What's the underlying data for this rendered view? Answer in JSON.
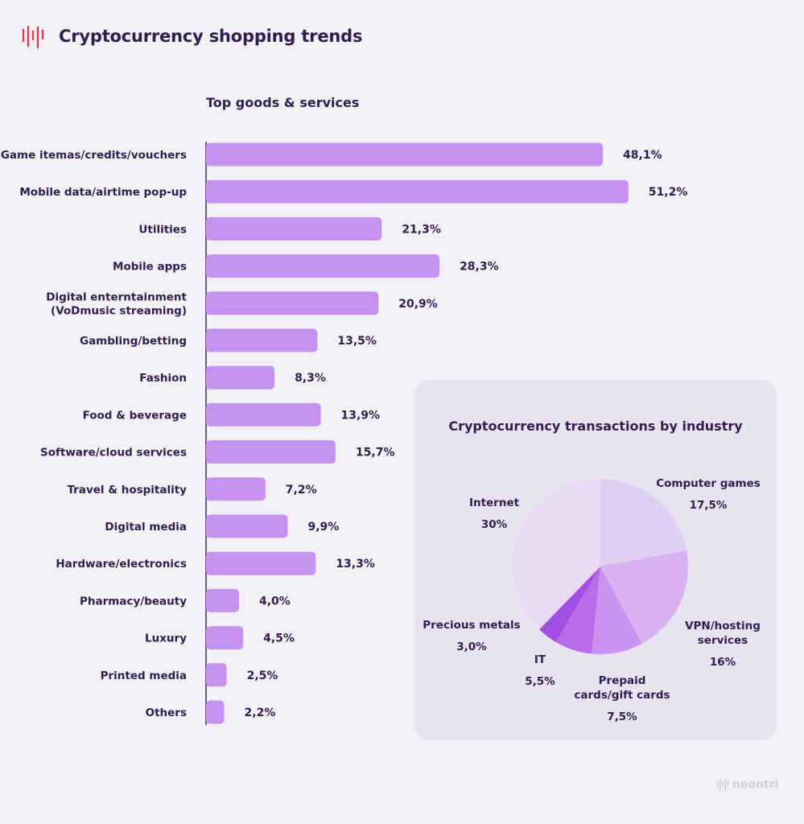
{
  "header": {
    "title": "Cryptocurrency shopping trends"
  },
  "brand": {
    "name": "neontri"
  },
  "colors": {
    "bar": "#c692ef",
    "axis": "#3a2a5a",
    "text": "#2e1f50",
    "panel": "#e7e3f1",
    "logo": "#e8374f"
  },
  "chart_data": [
    {
      "type": "bar",
      "orientation": "horizontal",
      "title": "Top goods & services",
      "categories": [
        [
          "Game itemas/credits/vouchers"
        ],
        [
          "Mobile data/airtime pop-up"
        ],
        [
          "Utilities"
        ],
        [
          "Mobile apps"
        ],
        [
          "Digital enterntainment",
          "(VoDmusic streaming)"
        ],
        [
          "Gambling/betting"
        ],
        [
          "Fashion"
        ],
        [
          "Food & beverage"
        ],
        [
          "Software/cloud services"
        ],
        [
          "Travel & hospitality"
        ],
        [
          "Digital media"
        ],
        [
          "Hardware/electronics"
        ],
        [
          "Pharmacy/beauty"
        ],
        [
          "Luxury"
        ],
        [
          "Printed media"
        ],
        [
          "Others"
        ]
      ],
      "values": [
        48.1,
        51.2,
        21.3,
        28.3,
        20.9,
        13.5,
        8.3,
        13.9,
        15.7,
        7.2,
        9.9,
        13.3,
        4.0,
        4.5,
        2.5,
        2.2
      ],
      "value_labels": [
        "48,1%",
        "51,2%",
        "21,3%",
        "28,3%",
        "20,9%",
        "13,5%",
        "8,3%",
        "13,9%",
        "15,7%",
        "7,2%",
        "9,9%",
        "13,3%",
        "4,0%",
        "4,5%",
        "2,5%",
        "2,2%"
      ],
      "unit": "%"
    },
    {
      "type": "pie",
      "title": "Cryptocurrency transactions by industry",
      "slices": [
        {
          "label": [
            "Computer games"
          ],
          "value": 17.5,
          "value_label": "17,5%",
          "color": "#e1cff3"
        },
        {
          "label": [
            "VPN/hosting",
            "services"
          ],
          "value": 16,
          "value_label": "16%",
          "color": "#d9b2f1"
        },
        {
          "label": [
            "Prepaid",
            "cards/gift cards"
          ],
          "value": 7.5,
          "value_label": "7,5%",
          "color": "#cc92ef"
        },
        {
          "label": [
            "IT"
          ],
          "value": 5.5,
          "value_label": "5,5%",
          "color": "#b76de8"
        },
        {
          "label": [
            "Precious metals"
          ],
          "value": 3.0,
          "value_label": "3,0%",
          "color": "#a04fe2"
        },
        {
          "label": [
            "Internet"
          ],
          "value": 30,
          "value_label": "30%",
          "color": "#ead9f4"
        }
      ]
    }
  ]
}
